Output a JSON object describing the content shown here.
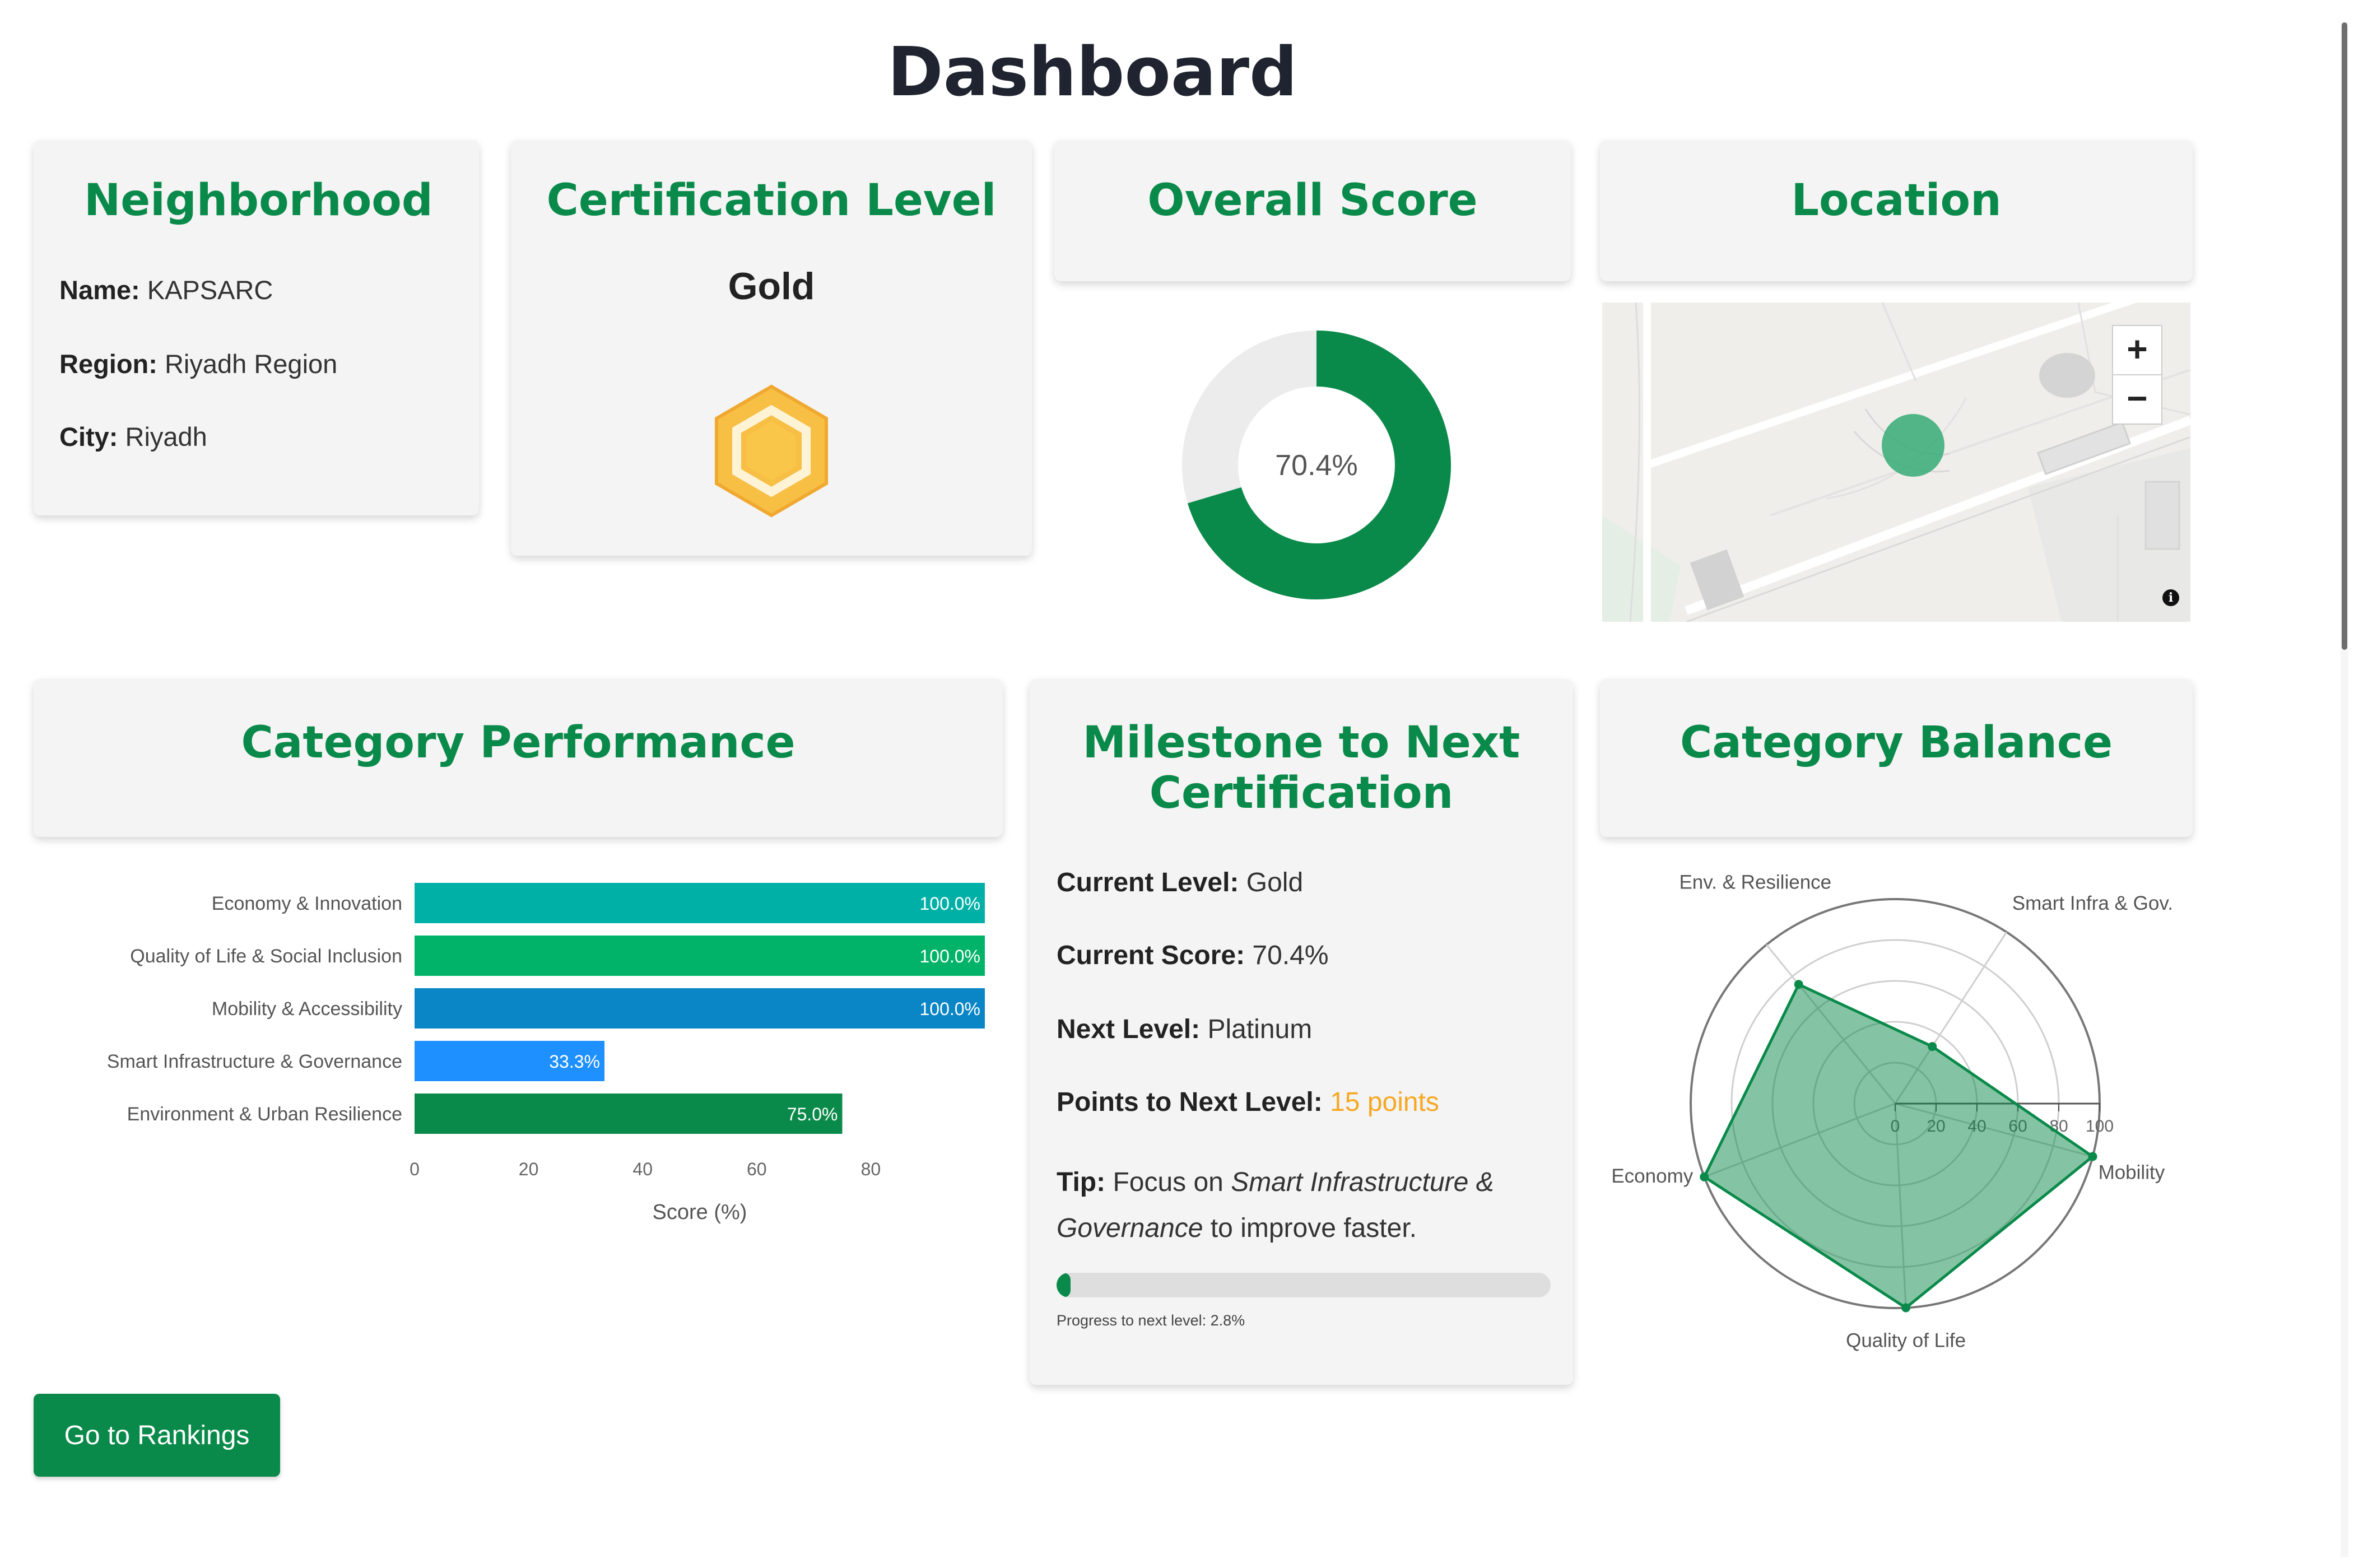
{
  "page": {
    "title": "Dashboard"
  },
  "neighborhood": {
    "title": "Neighborhood",
    "name_label": "Name:",
    "name_value": "KAPSARC",
    "region_label": "Region:",
    "region_value": "Riyadh Region",
    "city_label": "City:",
    "city_value": "Riyadh"
  },
  "certification": {
    "title": "Certification Level",
    "level": "Gold",
    "badge_color": "#f7bf44"
  },
  "overall": {
    "title": "Overall Score",
    "label": "70.4%",
    "score": 70.4,
    "color": "#0a8a4a"
  },
  "location": {
    "title": "Location",
    "zoom_in": "+",
    "zoom_out": "−",
    "info": "i"
  },
  "category_performance": {
    "title": "Category Performance"
  },
  "milestone": {
    "title_line1": "Milestone to Next",
    "title_line2": "Certification",
    "current_level_label": "Current Level:",
    "current_level_value": "Gold",
    "current_score_label": "Current Score:",
    "current_score_value": "70.4%",
    "next_level_label": "Next Level:",
    "next_level_value": "Platinum",
    "points_label": "Points to Next Level:",
    "points_value": "15 points",
    "tip_label": "Tip:",
    "tip_text1": "Focus on",
    "tip_emph_line1": "Smart Infrastructure &",
    "tip_emph_line2": "Governance",
    "tip_text2": "to improve faster.",
    "progress": 2.8,
    "progress_label": "Progress to next level: 2.8%"
  },
  "category_balance": {
    "title": "Category Balance"
  },
  "buttons": {
    "rankings": "Go to Rankings"
  },
  "chart_data": [
    {
      "type": "bar",
      "orientation": "horizontal",
      "categories": [
        "Economy & Innovation",
        "Quality of Life & Social Inclusion",
        "Mobility & Accessibility",
        "Smart Infrastructure & Governance",
        "Environment & Urban Resilience"
      ],
      "values": [
        100.0,
        100.0,
        100.0,
        33.3,
        75.0
      ],
      "value_labels": [
        "100.0%",
        "100.0%",
        "100.0%",
        "33.3%",
        "75.0%"
      ],
      "colors": [
        "#00b0a6",
        "#00b368",
        "#0a86c6",
        "#1e90ff",
        "#0a8a4a"
      ],
      "xlabel": "Score (%)",
      "xticks": [
        0,
        20,
        40,
        60,
        80
      ],
      "xlim": [
        0,
        100
      ]
    },
    {
      "type": "radar",
      "axes": [
        "Mobility",
        "Smart Infra & Gov.",
        "Env. & Resilience",
        "Economy",
        "Quality of Life"
      ],
      "values": [
        100,
        33.3,
        75,
        100,
        100
      ],
      "rticks": [
        0,
        20,
        40,
        60,
        80,
        100
      ],
      "rlim": [
        0,
        100
      ],
      "color": "#0a8a4a"
    },
    {
      "type": "pie",
      "subtype": "donut",
      "values": [
        70.4,
        29.6
      ],
      "colors": [
        "#0a8a4a",
        "#ececec"
      ],
      "center_label": "70.4%"
    }
  ]
}
